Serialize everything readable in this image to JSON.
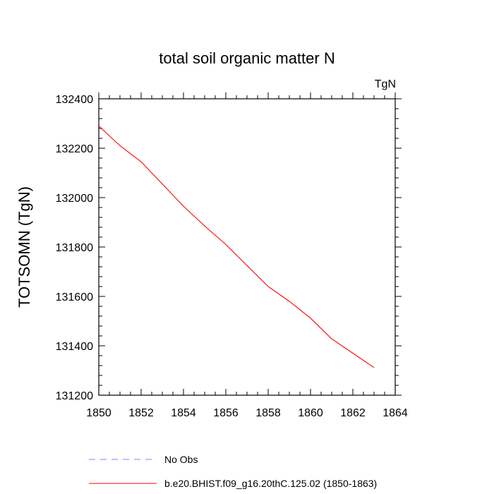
{
  "chart_data": {
    "type": "line",
    "title": "total soil organic matter N",
    "units_label": "TgN",
    "ylabel": "TOTSOMN  (TgN)",
    "xlabel": "",
    "xlim": [
      1850,
      1864
    ],
    "ylim": [
      131200,
      132400
    ],
    "x_ticks": [
      1850,
      1852,
      1854,
      1856,
      1858,
      1860,
      1862,
      1864
    ],
    "x_tick_labels": [
      "1850",
      "1852",
      "1854",
      "1856",
      "1858",
      "1860",
      "1862",
      "1864"
    ],
    "y_ticks": [
      131200,
      131400,
      131600,
      131800,
      132000,
      132200,
      132400
    ],
    "y_tick_labels": [
      "131200",
      "131400",
      "131600",
      "131800",
      "132000",
      "132200",
      "132400"
    ],
    "grid": false,
    "legend_position": "bottom",
    "series": [
      {
        "name": "No Obs",
        "color": "#8080ff",
        "dash": "dashed",
        "x": [],
        "y": []
      },
      {
        "name": "b.e20.BHIST.f09_g16.20thC.125.02 (1850-1863)",
        "color": "#ff0000",
        "dash": "solid",
        "x": [
          1850,
          1851,
          1852,
          1853,
          1854,
          1855,
          1856,
          1857,
          1858,
          1859,
          1860,
          1861,
          1862,
          1863
        ],
        "y": [
          132290,
          132210,
          132145,
          132055,
          131965,
          131885,
          131810,
          131725,
          131640,
          131580,
          131512,
          131428,
          131370,
          131312
        ]
      }
    ]
  }
}
